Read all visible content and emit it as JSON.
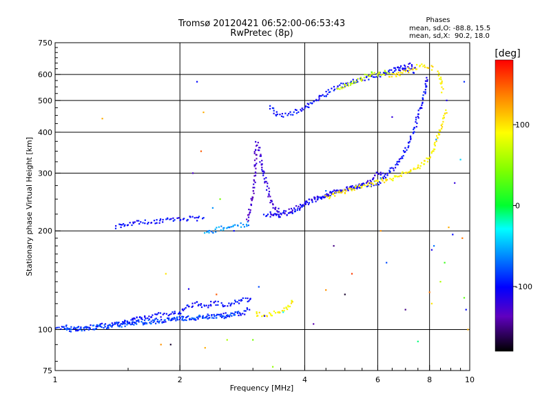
{
  "header": {
    "title_line1": "Tromsø 20120421 06:52:00-06:53:43",
    "title_line2": "RwPretec (8p)"
  },
  "phases": {
    "label": "Phases",
    "line_o": "mean, sd,O: -88.8, 15.5",
    "line_x": "mean, sd,X:  90.2, 18.0"
  },
  "chart_data": {
    "type": "scatter",
    "xlabel": "Frequency [MHz]",
    "ylabel": "Stationary phase Virtual Height [km]",
    "xscale": "log",
    "yscale": "log",
    "xlim": [
      1,
      10
    ],
    "ylim": [
      75,
      750
    ],
    "x_ticks": [
      1,
      2,
      4,
      6,
      8,
      10
    ],
    "x_tick_labels": [
      "1",
      "2",
      "4",
      "6",
      "8",
      "10"
    ],
    "y_ticks": [
      75,
      100,
      200,
      300,
      400,
      500,
      600,
      750
    ],
    "y_tick_labels": [
      "75",
      "100",
      "200",
      "300",
      "400",
      "500",
      "600",
      "750"
    ],
    "grid": true,
    "colorbar": {
      "title": "[deg]",
      "range": [
        -180,
        180
      ],
      "ticks": [
        100,
        0,
        -100
      ],
      "tick_labels": [
        "100",
        "0",
        "-100"
      ]
    },
    "series": [
      {
        "points": [
          [
            1.0,
            100
          ],
          [
            1.05,
            102
          ],
          [
            1.1,
            101
          ],
          [
            1.15,
            100
          ],
          [
            1.2,
            102
          ],
          [
            1.25,
            101
          ],
          [
            1.3,
            103
          ],
          [
            1.35,
            102
          ],
          [
            1.4,
            104
          ],
          [
            1.45,
            104
          ],
          [
            1.5,
            105
          ],
          [
            1.55,
            105
          ],
          [
            1.6,
            106
          ],
          [
            1.7,
            106
          ],
          [
            1.8,
            107
          ],
          [
            1.9,
            107
          ],
          [
            2.0,
            108
          ],
          [
            2.1,
            108
          ],
          [
            2.2,
            109
          ],
          [
            2.3,
            109
          ],
          [
            2.4,
            110
          ],
          [
            2.5,
            110
          ],
          [
            2.6,
            111
          ],
          [
            2.7,
            111
          ],
          [
            2.8,
            112
          ],
          [
            2.9,
            113
          ],
          [
            2.95,
            116
          ]
        ],
        "phase": -95
      },
      {
        "points": [
          [
            1.4,
            103
          ],
          [
            1.5,
            106
          ],
          [
            1.6,
            109
          ],
          [
            1.7,
            110
          ],
          [
            1.8,
            111
          ],
          [
            1.9,
            111
          ],
          [
            2.0,
            113
          ],
          [
            2.1,
            118
          ],
          [
            2.2,
            120
          ],
          [
            2.3,
            117
          ],
          [
            2.4,
            121
          ],
          [
            2.6,
            119
          ],
          [
            2.8,
            122
          ],
          [
            3.0,
            125
          ]
        ],
        "phase": -100
      },
      {
        "points": [
          [
            3.05,
            112
          ],
          [
            3.1,
            111
          ],
          [
            3.2,
            111
          ],
          [
            3.3,
            112
          ],
          [
            3.4,
            112
          ],
          [
            3.5,
            113
          ],
          [
            3.6,
            115
          ],
          [
            3.7,
            120
          ],
          [
            3.75,
            125
          ]
        ],
        "phase": 95
      },
      {
        "points": [
          [
            1.4,
            206
          ],
          [
            1.5,
            211
          ],
          [
            1.6,
            212
          ],
          [
            1.7,
            213
          ],
          [
            1.8,
            215
          ],
          [
            1.9,
            217
          ],
          [
            2.0,
            217
          ],
          [
            2.1,
            218
          ],
          [
            2.2,
            218
          ],
          [
            2.3,
            218
          ]
        ],
        "phase": -100
      },
      {
        "points": [
          [
            2.3,
            196
          ],
          [
            2.4,
            200
          ],
          [
            2.5,
            203
          ],
          [
            2.6,
            205
          ],
          [
            2.7,
            208
          ],
          [
            2.8,
            208
          ],
          [
            2.9,
            210
          ],
          [
            2.95,
            210
          ]
        ],
        "phase": -60
      },
      {
        "points": [
          [
            2.9,
            215
          ],
          [
            2.95,
            230
          ],
          [
            3.0,
            260
          ],
          [
            3.03,
            300
          ],
          [
            3.05,
            350
          ],
          [
            3.07,
            380
          ]
        ],
        "phase": -130
      },
      {
        "points": [
          [
            3.1,
            360
          ],
          [
            3.15,
            320
          ],
          [
            3.2,
            290
          ],
          [
            3.25,
            270
          ],
          [
            3.3,
            250
          ],
          [
            3.4,
            235
          ],
          [
            3.5,
            228
          ]
        ],
        "phase": -120
      },
      {
        "points": [
          [
            3.2,
            225
          ],
          [
            3.4,
            222
          ],
          [
            3.6,
            225
          ],
          [
            3.8,
            232
          ],
          [
            4.0,
            240
          ],
          [
            4.2,
            247
          ],
          [
            4.4,
            253
          ],
          [
            4.6,
            259
          ],
          [
            4.8,
            263
          ],
          [
            5.0,
            268
          ],
          [
            5.2,
            271
          ],
          [
            5.5,
            275
          ],
          [
            5.8,
            278
          ],
          [
            6.0,
            281
          ],
          [
            6.2,
            290
          ],
          [
            6.5,
            308
          ],
          [
            6.8,
            330
          ],
          [
            7.0,
            350
          ],
          [
            7.2,
            380
          ],
          [
            7.4,
            420
          ],
          [
            7.6,
            470
          ],
          [
            7.8,
            540
          ],
          [
            7.9,
            600
          ]
        ],
        "phase": -100
      },
      {
        "points": [
          [
            3.3,
            226
          ],
          [
            3.6,
            228
          ],
          [
            3.9,
            238
          ],
          [
            4.2,
            250
          ],
          [
            4.6,
            260
          ],
          [
            5.0,
            268
          ],
          [
            5.4,
            276
          ],
          [
            5.8,
            285
          ],
          [
            6.0,
            298
          ],
          [
            6.2,
            305
          ]
        ],
        "phase": -115
      },
      {
        "points": [
          [
            4.5,
            252
          ],
          [
            4.8,
            260
          ],
          [
            5.2,
            268
          ],
          [
            5.6,
            275
          ],
          [
            6.0,
            282
          ],
          [
            6.4,
            288
          ],
          [
            6.8,
            295
          ],
          [
            7.2,
            305
          ],
          [
            7.6,
            315
          ],
          [
            8.0,
            335
          ],
          [
            8.2,
            355
          ],
          [
            8.4,
            390
          ],
          [
            8.6,
            430
          ],
          [
            8.8,
            470
          ]
        ],
        "phase": 95
      },
      {
        "points": [
          [
            3.3,
            475
          ],
          [
            3.4,
            455
          ],
          [
            3.6,
            452
          ],
          [
            3.8,
            460
          ],
          [
            4.0,
            475
          ],
          [
            4.2,
            495
          ],
          [
            4.4,
            515
          ],
          [
            4.6,
            535
          ],
          [
            4.8,
            550
          ],
          [
            5.0,
            560
          ],
          [
            5.2,
            570
          ],
          [
            5.4,
            578
          ],
          [
            5.6,
            583
          ],
          [
            5.8,
            588
          ],
          [
            6.0,
            595
          ],
          [
            6.2,
            605
          ],
          [
            6.4,
            612
          ],
          [
            6.6,
            620
          ],
          [
            6.8,
            625
          ],
          [
            7.0,
            627
          ],
          [
            7.2,
            620
          ],
          [
            7.4,
            608
          ]
        ],
        "phase": -100
      },
      {
        "points": [
          [
            4.8,
            542
          ],
          [
            5.0,
            555
          ],
          [
            5.2,
            565
          ],
          [
            5.4,
            575
          ],
          [
            5.6,
            595
          ],
          [
            5.8,
            600
          ],
          [
            6.0,
            603
          ],
          [
            6.2,
            608
          ],
          [
            6.4,
            615
          ]
        ],
        "phase": 70
      },
      {
        "points": [
          [
            6.4,
            590
          ],
          [
            6.6,
            598
          ],
          [
            6.8,
            605
          ],
          [
            7.0,
            612
          ],
          [
            7.2,
            622
          ],
          [
            7.4,
            630
          ],
          [
            7.6,
            637
          ],
          [
            7.8,
            641
          ],
          [
            8.0,
            635
          ],
          [
            8.2,
            625
          ]
        ],
        "phase": 100
      },
      {
        "points": [
          [
            6.6,
            620
          ],
          [
            6.8,
            628
          ],
          [
            7.0,
            635
          ],
          [
            7.2,
            640
          ],
          [
            7.4,
            636
          ]
        ],
        "phase": -110
      },
      {
        "points": [
          [
            8.4,
            610
          ],
          [
            8.5,
            590
          ],
          [
            8.55,
            560
          ],
          [
            8.6,
            530
          ]
        ],
        "phase": 95
      },
      {
        "points": [
          [
            1.05,
            101
          ],
          [
            1.1,
            100
          ],
          [
            1.2,
            101
          ],
          [
            1.3,
            102
          ],
          [
            1.4,
            103
          ],
          [
            1.5,
            104
          ],
          [
            1.6,
            105
          ],
          [
            1.75,
            106
          ],
          [
            1.9,
            107
          ],
          [
            2.05,
            108
          ],
          [
            2.2,
            109
          ],
          [
            2.4,
            110
          ],
          [
            2.6,
            110
          ],
          [
            2.8,
            112
          ]
        ],
        "phase": -80
      }
    ],
    "scatter": [
      {
        "x": 1.3,
        "y": 440,
        "phase": 120
      },
      {
        "x": 2.2,
        "y": 570,
        "phase": -100
      },
      {
        "x": 2.28,
        "y": 460,
        "phase": 120
      },
      {
        "x": 2.25,
        "y": 350,
        "phase": 150
      },
      {
        "x": 2.15,
        "y": 300,
        "phase": -130
      },
      {
        "x": 2.5,
        "y": 250,
        "phase": 40
      },
      {
        "x": 2.4,
        "y": 235,
        "phase": -60
      },
      {
        "x": 2.7,
        "y": 200,
        "phase": -100
      },
      {
        "x": 1.85,
        "y": 148,
        "phase": 100
      },
      {
        "x": 2.1,
        "y": 133,
        "phase": -110
      },
      {
        "x": 2.45,
        "y": 128,
        "phase": 150
      },
      {
        "x": 1.8,
        "y": 90,
        "phase": 130
      },
      {
        "x": 1.9,
        "y": 90,
        "phase": -170
      },
      {
        "x": 2.3,
        "y": 88,
        "phase": 120
      },
      {
        "x": 2.6,
        "y": 93,
        "phase": 60
      },
      {
        "x": 3.0,
        "y": 93,
        "phase": 40
      },
      {
        "x": 3.1,
        "y": 135,
        "phase": -80
      },
      {
        "x": 3.2,
        "y": 110,
        "phase": -110
      },
      {
        "x": 3.35,
        "y": 77,
        "phase": 50
      },
      {
        "x": 3.55,
        "y": 113,
        "phase": -30
      },
      {
        "x": 4.2,
        "y": 104,
        "phase": -140
      },
      {
        "x": 4.5,
        "y": 132,
        "phase": 130
      },
      {
        "x": 4.7,
        "y": 180,
        "phase": -150
      },
      {
        "x": 5.0,
        "y": 128,
        "phase": -170
      },
      {
        "x": 5.2,
        "y": 148,
        "phase": 160
      },
      {
        "x": 4.5,
        "y": 265,
        "phase": -70
      },
      {
        "x": 6.1,
        "y": 290,
        "phase": -60
      },
      {
        "x": 6.5,
        "y": 445,
        "phase": -120
      },
      {
        "x": 6.1,
        "y": 200,
        "phase": 130
      },
      {
        "x": 6.3,
        "y": 160,
        "phase": -80
      },
      {
        "x": 7.5,
        "y": 92,
        "phase": -10
      },
      {
        "x": 8.0,
        "y": 130,
        "phase": 140
      },
      {
        "x": 8.2,
        "y": 180,
        "phase": -70
      },
      {
        "x": 8.5,
        "y": 140,
        "phase": 60
      },
      {
        "x": 8.7,
        "y": 160,
        "phase": 20
      },
      {
        "x": 8.9,
        "y": 205,
        "phase": 120
      },
      {
        "x": 9.1,
        "y": 195,
        "phase": -100
      },
      {
        "x": 9.2,
        "y": 280,
        "phase": -120
      },
      {
        "x": 9.5,
        "y": 330,
        "phase": -40
      },
      {
        "x": 9.7,
        "y": 570,
        "phase": -90
      },
      {
        "x": 9.6,
        "y": 190,
        "phase": 140
      },
      {
        "x": 9.7,
        "y": 125,
        "phase": 30
      },
      {
        "x": 9.8,
        "y": 115,
        "phase": -100
      },
      {
        "x": 9.9,
        "y": 100,
        "phase": 120
      },
      {
        "x": 8.1,
        "y": 175,
        "phase": -110
      },
      {
        "x": 8.3,
        "y": 380,
        "phase": -60
      },
      {
        "x": 8.8,
        "y": 500,
        "phase": -110
      },
      {
        "x": 5.8,
        "y": 610,
        "phase": 30
      },
      {
        "x": 7.0,
        "y": 115,
        "phase": -150
      },
      {
        "x": 8.1,
        "y": 120,
        "phase": 100
      }
    ]
  }
}
